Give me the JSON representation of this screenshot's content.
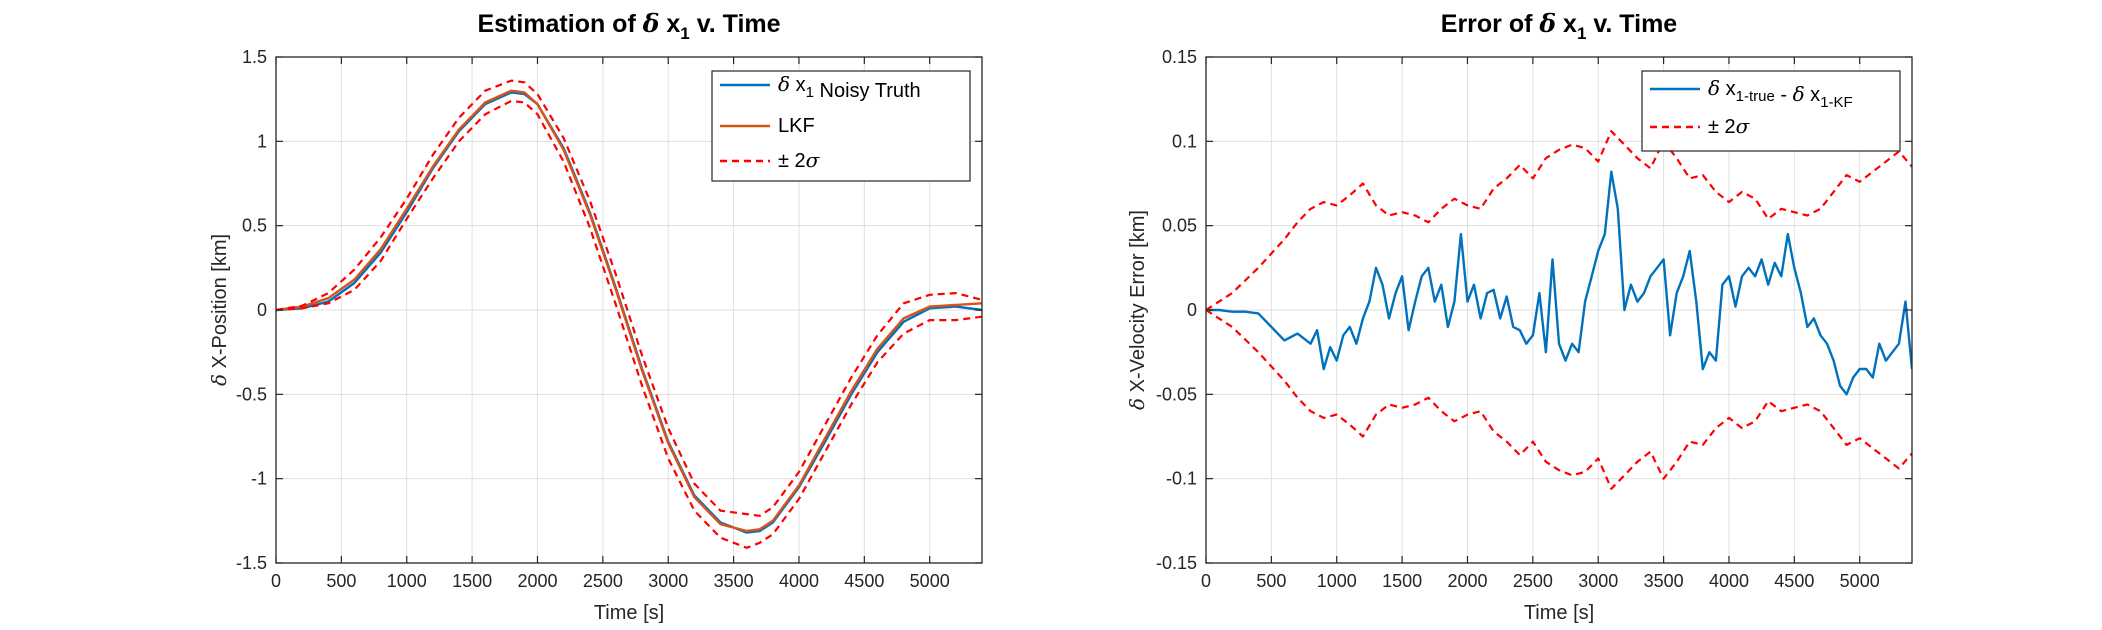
{
  "colors": {
    "truth": "#0072BD",
    "lkf": "#D95319",
    "bound": "#FF0000",
    "axis": "#262626",
    "grid": "#DFDFDF"
  },
  "chart_data": [
    {
      "type": "line",
      "title": {
        "prefix": "Estimation of ",
        "greek": "δ",
        "var": " x",
        "sub": "1",
        "suffix": " v. Time"
      },
      "xlabel": "Time [s]",
      "ylabel": {
        "greek": "δ",
        "text": " X-Position [km]"
      },
      "xlim": [
        0,
        5400
      ],
      "ylim": [
        -1.5,
        1.5
      ],
      "xticks": [
        0,
        500,
        1000,
        1500,
        2000,
        2500,
        3000,
        3500,
        4000,
        4500,
        5000
      ],
      "yticks": [
        -1.5,
        -1,
        -0.5,
        0,
        0.5,
        1,
        1.5
      ],
      "xtick_labels": [
        "0",
        "500",
        "1000",
        "1500",
        "2000",
        "2500",
        "3000",
        "3500",
        "4000",
        "4500",
        "5000"
      ],
      "ytick_labels": [
        "-1.5",
        "-1",
        "-0.5",
        "0",
        "0.5",
        "1",
        "1.5"
      ],
      "grid": true,
      "legend_position": "top-right",
      "legend": [
        {
          "greek": "δ",
          "text": " x",
          "sub": "1",
          "after": " Noisy Truth"
        },
        {
          "greek": "",
          "text": "LKF",
          "sub": "",
          "after": ""
        },
        {
          "greek": "±",
          "text": " 2",
          "sub": "",
          "after": "",
          "sigma": "σ"
        }
      ],
      "series": [
        {
          "role": "truth",
          "x": [
            0,
            200,
            400,
            600,
            800,
            1000,
            1200,
            1400,
            1600,
            1800,
            1900,
            2000,
            2200,
            2400,
            2600,
            2800,
            3000,
            3200,
            3400,
            3600,
            3700,
            3800,
            4000,
            4200,
            4400,
            4600,
            4800,
            5000,
            5200,
            5400
          ],
          "y": [
            0,
            0.01,
            0.05,
            0.16,
            0.34,
            0.58,
            0.84,
            1.06,
            1.22,
            1.29,
            1.28,
            1.22,
            0.96,
            0.58,
            0.13,
            -0.35,
            -0.78,
            -1.1,
            -1.26,
            -1.32,
            -1.31,
            -1.26,
            -1.05,
            -0.78,
            -0.5,
            -0.25,
            -0.07,
            0.01,
            0.02,
            0.0
          ]
        },
        {
          "role": "lkf",
          "x": [
            0,
            200,
            400,
            600,
            800,
            1000,
            1200,
            1400,
            1600,
            1800,
            1900,
            2000,
            2200,
            2400,
            2600,
            2800,
            3000,
            3200,
            3400,
            3600,
            3700,
            3800,
            4000,
            4200,
            4400,
            4600,
            4800,
            5000,
            5200,
            5400
          ],
          "y": [
            0,
            0.02,
            0.07,
            0.18,
            0.36,
            0.6,
            0.85,
            1.07,
            1.23,
            1.3,
            1.29,
            1.22,
            0.95,
            0.57,
            0.12,
            -0.36,
            -0.79,
            -1.11,
            -1.27,
            -1.31,
            -1.3,
            -1.25,
            -1.04,
            -0.76,
            -0.48,
            -0.23,
            -0.05,
            0.02,
            0.03,
            0.04
          ]
        },
        {
          "role": "bound_upper",
          "x": [
            0,
            200,
            400,
            600,
            800,
            1000,
            1200,
            1400,
            1600,
            1800,
            1900,
            2000,
            2200,
            2400,
            2600,
            2800,
            3000,
            3200,
            3400,
            3600,
            3700,
            3800,
            4000,
            4200,
            4400,
            4600,
            4800,
            5000,
            5200,
            5400
          ],
          "y": [
            0,
            0.025,
            0.1,
            0.24,
            0.43,
            0.66,
            0.92,
            1.14,
            1.3,
            1.36,
            1.35,
            1.28,
            1.02,
            0.65,
            0.21,
            -0.27,
            -0.7,
            -1.03,
            -1.19,
            -1.21,
            -1.22,
            -1.17,
            -0.96,
            -0.68,
            -0.4,
            -0.15,
            0.04,
            0.09,
            0.1,
            0.06
          ]
        },
        {
          "role": "bound_lower",
          "x": [
            0,
            200,
            400,
            600,
            800,
            1000,
            1200,
            1400,
            1600,
            1800,
            1900,
            2000,
            2200,
            2400,
            2600,
            2800,
            3000,
            3200,
            3400,
            3600,
            3700,
            3800,
            4000,
            4200,
            4400,
            4600,
            4800,
            5000,
            5200,
            5400
          ],
          "y": [
            0,
            0.01,
            0.04,
            0.12,
            0.29,
            0.54,
            0.78,
            1.0,
            1.16,
            1.24,
            1.23,
            1.16,
            0.88,
            0.49,
            0.03,
            -0.45,
            -0.88,
            -1.19,
            -1.35,
            -1.41,
            -1.38,
            -1.33,
            -1.12,
            -0.84,
            -0.56,
            -0.31,
            -0.14,
            -0.06,
            -0.06,
            -0.04
          ]
        }
      ]
    },
    {
      "type": "line",
      "title": {
        "prefix": "Error of ",
        "greek": "δ",
        "var": " x",
        "sub": "1",
        "suffix": " v. Time"
      },
      "xlabel": "Time [s]",
      "ylabel": {
        "greek": "δ",
        "text": " X-Velocity Error [km]"
      },
      "xlim": [
        0,
        5400
      ],
      "ylim": [
        -0.15,
        0.15
      ],
      "xticks": [
        0,
        500,
        1000,
        1500,
        2000,
        2500,
        3000,
        3500,
        4000,
        4500,
        5000
      ],
      "yticks": [
        -0.15,
        -0.1,
        -0.05,
        0,
        0.05,
        0.1,
        0.15
      ],
      "xtick_labels": [
        "0",
        "500",
        "1000",
        "1500",
        "2000",
        "2500",
        "3000",
        "3500",
        "4000",
        "4500",
        "5000"
      ],
      "ytick_labels": [
        "-0.15",
        "-0.1",
        "-0.05",
        "0",
        "0.05",
        "0.1",
        "0.15"
      ],
      "grid": true,
      "legend_position": "top-right",
      "legend": [
        {
          "greek": "δ",
          "text": " x",
          "sub": "1-true",
          "after": " - ",
          "greek2": "δ",
          "text2": " x",
          "sub2": "1-KF"
        },
        {
          "greek": "±",
          "text": " 2",
          "sub": "",
          "after": "",
          "sigma": "σ"
        }
      ],
      "series": [
        {
          "role": "truth",
          "x": [
            0,
            100,
            200,
            300,
            400,
            500,
            600,
            700,
            800,
            850,
            900,
            950,
            1000,
            1050,
            1100,
            1150,
            1200,
            1250,
            1300,
            1350,
            1400,
            1450,
            1500,
            1550,
            1600,
            1650,
            1700,
            1750,
            1800,
            1850,
            1900,
            1950,
            2000,
            2050,
            2100,
            2150,
            2200,
            2250,
            2300,
            2350,
            2400,
            2450,
            2500,
            2550,
            2600,
            2650,
            2700,
            2750,
            2800,
            2850,
            2900,
            2950,
            3000,
            3050,
            3100,
            3150,
            3200,
            3250,
            3300,
            3350,
            3400,
            3450,
            3500,
            3550,
            3600,
            3650,
            3700,
            3750,
            3800,
            3850,
            3900,
            3950,
            4000,
            4050,
            4100,
            4150,
            4200,
            4250,
            4300,
            4350,
            4400,
            4450,
            4500,
            4550,
            4600,
            4650,
            4700,
            4750,
            4800,
            4850,
            4900,
            4950,
            5000,
            5050,
            5100,
            5150,
            5200,
            5250,
            5300,
            5350,
            5400
          ],
          "y": [
            0,
            0,
            -0.001,
            -0.001,
            -0.002,
            -0.01,
            -0.018,
            -0.014,
            -0.02,
            -0.012,
            -0.035,
            -0.022,
            -0.03,
            -0.015,
            -0.01,
            -0.02,
            -0.005,
            0.005,
            0.025,
            0.015,
            -0.005,
            0.01,
            0.02,
            -0.012,
            0.005,
            0.02,
            0.025,
            0.005,
            0.015,
            -0.01,
            0.005,
            0.045,
            0.005,
            0.015,
            -0.005,
            0.01,
            0.012,
            -0.005,
            0.008,
            -0.01,
            -0.012,
            -0.02,
            -0.015,
            0.01,
            -0.025,
            0.03,
            -0.02,
            -0.03,
            -0.02,
            -0.025,
            0.005,
            0.02,
            0.035,
            0.045,
            0.082,
            0.06,
            0.0,
            0.015,
            0.005,
            0.01,
            0.02,
            0.025,
            0.03,
            -0.015,
            0.01,
            0.02,
            0.035,
            0.005,
            -0.035,
            -0.025,
            -0.03,
            0.015,
            0.02,
            0.002,
            0.02,
            0.025,
            0.02,
            0.03,
            0.015,
            0.028,
            0.02,
            0.045,
            0.025,
            0.01,
            -0.01,
            -0.005,
            -0.015,
            -0.02,
            -0.03,
            -0.045,
            -0.05,
            -0.04,
            -0.035,
            -0.035,
            -0.04,
            -0.02,
            -0.03,
            -0.025,
            -0.02,
            0.005,
            -0.035
          ]
        },
        {
          "role": "bound_upper",
          "x": [
            0,
            200,
            400,
            600,
            700,
            800,
            900,
            1000,
            1100,
            1200,
            1300,
            1400,
            1500,
            1600,
            1700,
            1800,
            1900,
            2000,
            2100,
            2200,
            2300,
            2400,
            2500,
            2600,
            2700,
            2800,
            2900,
            3000,
            3100,
            3200,
            3300,
            3400,
            3500,
            3600,
            3700,
            3800,
            3900,
            4000,
            4100,
            4200,
            4300,
            4400,
            4500,
            4600,
            4700,
            4800,
            4900,
            5000,
            5100,
            5200,
            5300,
            5400
          ],
          "y": [
            0,
            0.01,
            0.025,
            0.042,
            0.052,
            0.06,
            0.064,
            0.062,
            0.068,
            0.075,
            0.062,
            0.056,
            0.058,
            0.056,
            0.052,
            0.06,
            0.066,
            0.062,
            0.06,
            0.072,
            0.078,
            0.086,
            0.078,
            0.09,
            0.095,
            0.098,
            0.096,
            0.088,
            0.106,
            0.098,
            0.09,
            0.084,
            0.1,
            0.09,
            0.078,
            0.08,
            0.07,
            0.064,
            0.07,
            0.066,
            0.054,
            0.06,
            0.058,
            0.056,
            0.06,
            0.07,
            0.08,
            0.076,
            0.082,
            0.088,
            0.094,
            0.085
          ]
        },
        {
          "role": "bound_lower",
          "x": [
            0,
            200,
            400,
            600,
            700,
            800,
            900,
            1000,
            1100,
            1200,
            1300,
            1400,
            1500,
            1600,
            1700,
            1800,
            1900,
            2000,
            2100,
            2200,
            2300,
            2400,
            2500,
            2600,
            2700,
            2800,
            2900,
            3000,
            3100,
            3200,
            3300,
            3400,
            3500,
            3600,
            3700,
            3800,
            3900,
            4000,
            4100,
            4200,
            4300,
            4400,
            4500,
            4600,
            4700,
            4800,
            4900,
            5000,
            5100,
            5200,
            5300,
            5400
          ],
          "y": [
            0,
            -0.01,
            -0.025,
            -0.042,
            -0.052,
            -0.06,
            -0.064,
            -0.062,
            -0.068,
            -0.075,
            -0.062,
            -0.056,
            -0.058,
            -0.056,
            -0.052,
            -0.06,
            -0.066,
            -0.062,
            -0.06,
            -0.072,
            -0.078,
            -0.086,
            -0.078,
            -0.09,
            -0.095,
            -0.098,
            -0.096,
            -0.088,
            -0.106,
            -0.098,
            -0.09,
            -0.084,
            -0.1,
            -0.09,
            -0.078,
            -0.08,
            -0.07,
            -0.064,
            -0.07,
            -0.066,
            -0.054,
            -0.06,
            -0.058,
            -0.056,
            -0.06,
            -0.07,
            -0.08,
            -0.076,
            -0.082,
            -0.088,
            -0.094,
            -0.085
          ]
        }
      ]
    }
  ]
}
